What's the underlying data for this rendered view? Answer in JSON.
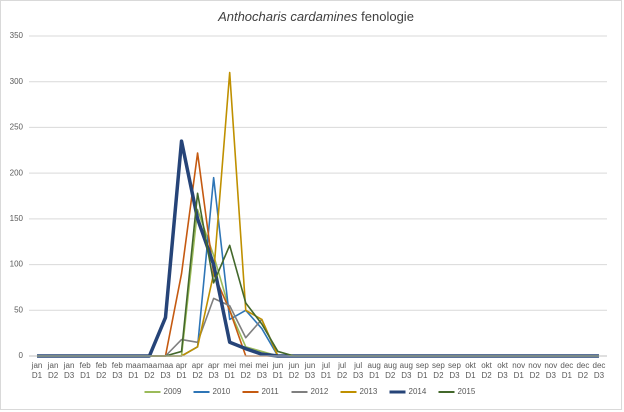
{
  "chart_data": {
    "type": "line",
    "title": {
      "species": "Anthocharis cardamines",
      "text": "fenologie"
    },
    "categories": [
      "jan D1",
      "jan D2",
      "jan D3",
      "feb D1",
      "feb D2",
      "feb D3",
      "maa D1",
      "maa D2",
      "maa D3",
      "apr D1",
      "apr D2",
      "apr D3",
      "mei D1",
      "mei D2",
      "mei D3",
      "jun D1",
      "jun D2",
      "jun D3",
      "jul D1",
      "jul D2",
      "jul D3",
      "aug D1",
      "aug D2",
      "aug D3",
      "sep D1",
      "sep D2",
      "sep D3",
      "okt D1",
      "okt D2",
      "okt D3",
      "nov D1",
      "nov D2",
      "nov D3",
      "dec D1",
      "dec D2",
      "dec D3"
    ],
    "ylim": [
      0,
      350
    ],
    "yticks": [
      0,
      50,
      100,
      150,
      200,
      250,
      300,
      350
    ],
    "grid": true,
    "series": [
      {
        "name": "2009",
        "color": "#9bbb59",
        "values": [
          0,
          0,
          0,
          0,
          0,
          0,
          0,
          0,
          0,
          0,
          160,
          110,
          50,
          10,
          5,
          0,
          0,
          0,
          0,
          0,
          0,
          0,
          0,
          0,
          0,
          0,
          0,
          0,
          0,
          0,
          0,
          0,
          0,
          0,
          0,
          0
        ]
      },
      {
        "name": "2010",
        "color": "#2e75b6",
        "values": [
          0,
          0,
          0,
          0,
          0,
          0,
          0,
          0,
          0,
          0,
          10,
          195,
          40,
          50,
          30,
          0,
          0,
          0,
          0,
          0,
          0,
          0,
          0,
          0,
          0,
          0,
          0,
          0,
          0,
          0,
          0,
          0,
          0,
          0,
          0,
          0
        ]
      },
      {
        "name": "2011",
        "color": "#c55a11",
        "values": [
          0,
          0,
          0,
          0,
          0,
          0,
          0,
          0,
          0,
          90,
          222,
          90,
          50,
          0,
          0,
          0,
          0,
          0,
          0,
          0,
          0,
          0,
          0,
          0,
          0,
          0,
          0,
          0,
          0,
          0,
          0,
          0,
          0,
          0,
          0,
          0
        ]
      },
      {
        "name": "2012",
        "color": "#7f7f7f",
        "values": [
          0,
          0,
          0,
          0,
          0,
          0,
          0,
          0,
          0,
          18,
          15,
          63,
          55,
          20,
          40,
          0,
          0,
          0,
          0,
          0,
          0,
          0,
          0,
          0,
          0,
          0,
          0,
          0,
          0,
          0,
          0,
          0,
          0,
          0,
          0,
          0
        ]
      },
      {
        "name": "2013",
        "color": "#bf9000",
        "values": [
          0,
          0,
          0,
          0,
          0,
          0,
          0,
          0,
          0,
          0,
          10,
          90,
          310,
          50,
          40,
          0,
          0,
          0,
          0,
          0,
          0,
          0,
          0,
          0,
          0,
          0,
          0,
          0,
          0,
          0,
          0,
          0,
          0,
          0,
          0,
          0
        ]
      },
      {
        "name": "2014",
        "color": "#264478",
        "values": [
          0,
          0,
          0,
          0,
          0,
          0,
          0,
          0,
          42,
          235,
          150,
          100,
          15,
          8,
          2,
          0,
          0,
          0,
          0,
          0,
          0,
          0,
          0,
          0,
          0,
          0,
          0,
          0,
          0,
          0,
          0,
          0,
          0,
          0,
          0,
          0
        ]
      },
      {
        "name": "2015",
        "color": "#43682b",
        "values": [
          0,
          0,
          0,
          0,
          0,
          0,
          0,
          0,
          0,
          5,
          178,
          80,
          121,
          58,
          35,
          5,
          0,
          0,
          0,
          0,
          0,
          0,
          0,
          0,
          0,
          0,
          0,
          0,
          0,
          0,
          0,
          0,
          0,
          0,
          0,
          0
        ]
      }
    ]
  }
}
